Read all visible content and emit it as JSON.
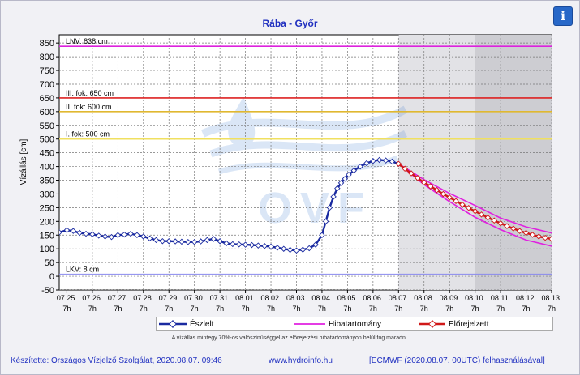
{
  "title": "Rába - Győr",
  "info_icon": "info-icon",
  "colors": {
    "observed": "#1a2aa0",
    "forecast": "#d01818",
    "error_band": "#e020e0",
    "lnv": "#dd22dd",
    "deg3": "#dd2222",
    "deg2": "#e0b830",
    "deg1": "#f0e060",
    "lkv": "#8888ee"
  },
  "levels": [
    {
      "key": "lnv",
      "label": "LNV: 838 cm",
      "value": 838
    },
    {
      "key": "deg3",
      "label": "III. fok: 650 cm",
      "value": 650
    },
    {
      "key": "deg2",
      "label": "II. fok: 600 cm",
      "value": 600
    },
    {
      "key": "deg1",
      "label": "I. fok: 500 cm",
      "value": 500
    },
    {
      "key": "lkv",
      "label": "LKV: 8 cm",
      "value": 8
    }
  ],
  "legend": {
    "observed": "Észlelt",
    "band": "Hibatartomány",
    "forecast": "Előrejelzett"
  },
  "note": "A vízállás mintegy 70%-os valószínűséggel az előrejelzési hibatartományon belül fog maradni.",
  "footer": {
    "left": "Készítette: Országos Vízjelző Szolgálat, 2020.08.07. 09:46",
    "center": "www.hydroinfo.hu",
    "right": "[ECMWF (2020.08.07. 00UTC) felhasználásával]"
  },
  "chart_data": {
    "type": "line",
    "ylabel": "Vízállás [cm]",
    "ylim": [
      -50,
      880
    ],
    "yticks": [
      -50,
      0,
      50,
      100,
      150,
      200,
      250,
      300,
      350,
      400,
      450,
      500,
      550,
      600,
      650,
      700,
      750,
      800,
      850
    ],
    "xlim": [
      -0.3,
      19
    ],
    "xticks": [
      {
        "date": "07.25.",
        "hour": "7h"
      },
      {
        "date": "07.26.",
        "hour": "7h"
      },
      {
        "date": "07.27.",
        "hour": "7h"
      },
      {
        "date": "07.28.",
        "hour": "7h"
      },
      {
        "date": "07.29.",
        "hour": "7h"
      },
      {
        "date": "07.30.",
        "hour": "7h"
      },
      {
        "date": "07.31.",
        "hour": "7h"
      },
      {
        "date": "08.01.",
        "hour": "7h"
      },
      {
        "date": "08.02.",
        "hour": "7h"
      },
      {
        "date": "08.03.",
        "hour": "7h"
      },
      {
        "date": "08.04.",
        "hour": "7h"
      },
      {
        "date": "08.05.",
        "hour": "7h"
      },
      {
        "date": "08.06.",
        "hour": "7h"
      },
      {
        "date": "08.07.",
        "hour": "7h"
      },
      {
        "date": "08.08.",
        "hour": "7h"
      },
      {
        "date": "08.09.",
        "hour": "7h"
      },
      {
        "date": "08.10.",
        "hour": "7h"
      },
      {
        "date": "08.11.",
        "hour": "7h"
      },
      {
        "date": "08.12.",
        "hour": "7h"
      },
      {
        "date": "08.13.",
        "hour": "7h"
      }
    ],
    "shading": [
      {
        "from": 13,
        "to": 16,
        "color": "#e2e2e6"
      },
      {
        "from": 16,
        "to": 19,
        "color": "#cdcdd2"
      }
    ],
    "series": [
      {
        "name": "Észlelt",
        "x": [
          -0.3,
          0,
          0.25,
          0.5,
          0.75,
          1,
          1.25,
          1.5,
          1.75,
          2,
          2.25,
          2.5,
          2.75,
          3,
          3.25,
          3.5,
          3.75,
          4,
          4.25,
          4.5,
          4.75,
          5,
          5.25,
          5.5,
          5.75,
          6,
          6.25,
          6.5,
          6.75,
          7,
          7.25,
          7.5,
          7.75,
          8,
          8.25,
          8.5,
          8.75,
          9,
          9.25,
          9.5,
          9.75,
          10,
          10.15,
          10.3,
          10.45,
          10.6,
          10.75,
          10.9,
          11.05,
          11.25,
          11.5,
          11.75,
          12,
          12.25,
          12.5,
          12.75,
          13
        ],
        "y": [
          160,
          168,
          165,
          158,
          155,
          153,
          148,
          145,
          143,
          150,
          152,
          155,
          150,
          145,
          138,
          132,
          128,
          128,
          127,
          126,
          125,
          125,
          127,
          132,
          136,
          128,
          120,
          117,
          116,
          115,
          114,
          112,
          110,
          108,
          104,
          100,
          96,
          94,
          97,
          102,
          115,
          150,
          200,
          250,
          290,
          320,
          340,
          355,
          370,
          385,
          400,
          412,
          420,
          424,
          422,
          418,
          410
        ]
      },
      {
        "name": "Előrejelzett",
        "x": [
          13,
          13.25,
          13.5,
          13.75,
          14,
          14.25,
          14.5,
          14.75,
          15,
          15.25,
          15.5,
          15.75,
          16,
          16.25,
          16.5,
          16.75,
          17,
          17.25,
          17.5,
          17.75,
          18,
          18.25,
          18.5,
          18.75,
          19
        ],
        "y": [
          410,
          392,
          375,
          358,
          342,
          328,
          314,
          300,
          287,
          274,
          261,
          249,
          237,
          225,
          214,
          203,
          193,
          183,
          174,
          165,
          158,
          151,
          145,
          140,
          136
        ]
      }
    ],
    "band": {
      "x": [
        13,
        14,
        15,
        16,
        17,
        18,
        19
      ],
      "upper": [
        410,
        352,
        302,
        258,
        212,
        180,
        158
      ],
      "lower": [
        410,
        334,
        272,
        215,
        170,
        132,
        110
      ]
    }
  }
}
